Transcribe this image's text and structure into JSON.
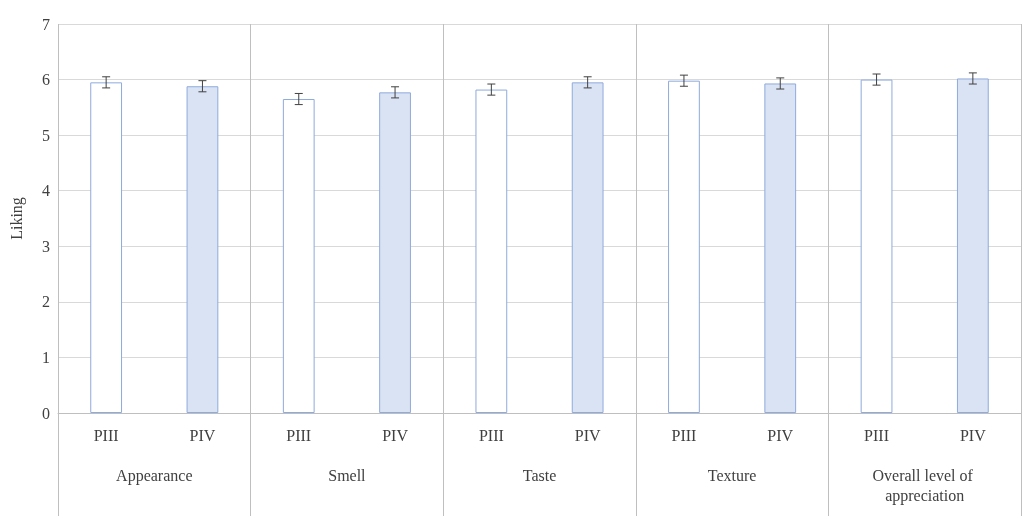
{
  "chart_data": {
    "type": "bar",
    "ylabel": "Liking",
    "categories": [
      "Appearance",
      "Smell",
      "Taste",
      "Texture",
      "Overall level of appreciation"
    ],
    "series": [
      {
        "name": "PIII",
        "color": "#ffffff",
        "values": [
          5.95,
          5.65,
          5.82,
          5.98,
          6.0
        ],
        "errors": [
          0.1,
          0.1,
          0.1,
          0.1,
          0.1
        ]
      },
      {
        "name": "PIV",
        "color": "#dae3f3",
        "values": [
          5.88,
          5.77,
          5.95,
          5.93,
          6.02
        ],
        "errors": [
          0.1,
          0.1,
          0.1,
          0.1,
          0.1
        ]
      }
    ],
    "ylim": [
      0,
      7
    ],
    "yticks": [
      0,
      1,
      2,
      3,
      4,
      5,
      6,
      7
    ],
    "grid": true,
    "legend": false
  }
}
